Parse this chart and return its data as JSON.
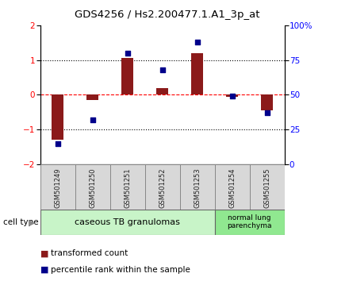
{
  "title": "GDS4256 / Hs2.200477.1.A1_3p_at",
  "samples": [
    "GSM501249",
    "GSM501250",
    "GSM501251",
    "GSM501252",
    "GSM501253",
    "GSM501254",
    "GSM501255"
  ],
  "transformed_counts": [
    -1.3,
    -0.15,
    1.05,
    0.2,
    1.2,
    -0.05,
    -0.45
  ],
  "percentile_ranks": [
    15,
    32,
    80,
    68,
    88,
    49,
    37
  ],
  "ylim_left": [
    -2,
    2
  ],
  "ylim_right": [
    0,
    100
  ],
  "yticks_left": [
    -2,
    -1,
    0,
    1,
    2
  ],
  "yticks_right": [
    0,
    25,
    50,
    75,
    100
  ],
  "yticklabels_right": [
    "0",
    "25",
    "50",
    "75",
    "100%"
  ],
  "bar_color": "#8B1A1A",
  "dot_color": "#00008B",
  "bar_width": 0.35,
  "group1_label": "caseous TB granulomas",
  "group2_label": "normal lung\nparenchyma",
  "group1_color": "#c8f4c8",
  "group2_color": "#90e890",
  "cell_type_label": "cell type",
  "legend_bar_label": "transformed count",
  "legend_dot_label": "percentile rank within the sample",
  "sample_box_color": "#d8d8d8"
}
